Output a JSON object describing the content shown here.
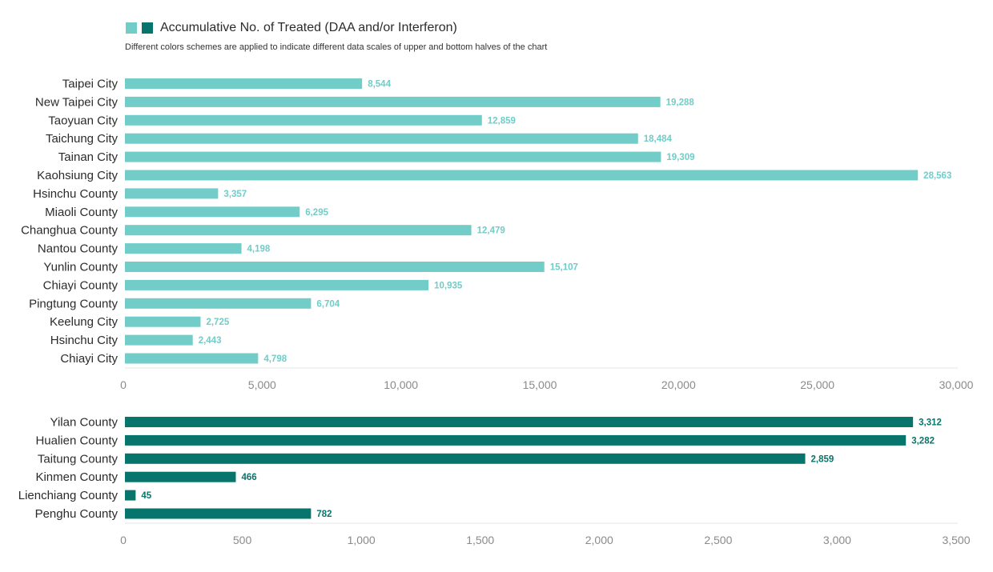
{
  "legend": {
    "label": "Accumulative No. of Treated (DAA and/or Interferon)",
    "colors": [
      "#72CCC7",
      "#07756C"
    ]
  },
  "note": "Different colors schemes are applied to indicate different data scales of upper and bottom halves of the chart",
  "chart_data": [
    {
      "type": "bar",
      "orientation": "horizontal",
      "color": "#72CCC7",
      "categories": [
        "Taipei City",
        "New Taipei City",
        "Taoyuan City",
        "Taichung City",
        "Tainan City",
        "Kaohsiung City",
        "Hsinchu County",
        "Miaoli County",
        "Changhua County",
        "Nantou County",
        "Yunlin County",
        "Chiayi County",
        "Pingtung County",
        "Keelung City",
        "Hsinchu City",
        "Chiayi City"
      ],
      "values": [
        8544,
        19288,
        12859,
        18484,
        19309,
        28563,
        3357,
        6295,
        12479,
        4198,
        15107,
        10935,
        6704,
        2725,
        2443,
        4798
      ],
      "value_labels": [
        "8,544",
        "19,288",
        "12,859",
        "18,484",
        "19,309",
        "28,563",
        "3,357",
        "6,295",
        "12,479",
        "4,198",
        "15,107",
        "10,935",
        "6,704",
        "2,725",
        "2,443",
        "4,798"
      ],
      "xlim": [
        0,
        30000
      ],
      "ticks": [
        0,
        5000,
        10000,
        15000,
        20000,
        25000,
        30000
      ],
      "tick_labels": [
        "0",
        "5,000",
        "10,000",
        "15,000",
        "20,000",
        "25,000",
        "30,000"
      ]
    },
    {
      "type": "bar",
      "orientation": "horizontal",
      "color": "#07756C",
      "categories": [
        "Yilan County",
        "Hualien County",
        "Taitung County",
        "Kinmen County",
        "Lienchiang County",
        "Penghu County"
      ],
      "values": [
        3312,
        3282,
        2859,
        466,
        45,
        782
      ],
      "value_labels": [
        "3,312",
        "3,282",
        "2,859",
        "466",
        "45",
        "782"
      ],
      "xlim": [
        0,
        3500
      ],
      "ticks": [
        0,
        500,
        1000,
        1500,
        2000,
        2500,
        3000,
        3500
      ],
      "tick_labels": [
        "0",
        "500",
        "1,000",
        "1,500",
        "2,000",
        "2,500",
        "3,000",
        "3,500"
      ]
    }
  ]
}
